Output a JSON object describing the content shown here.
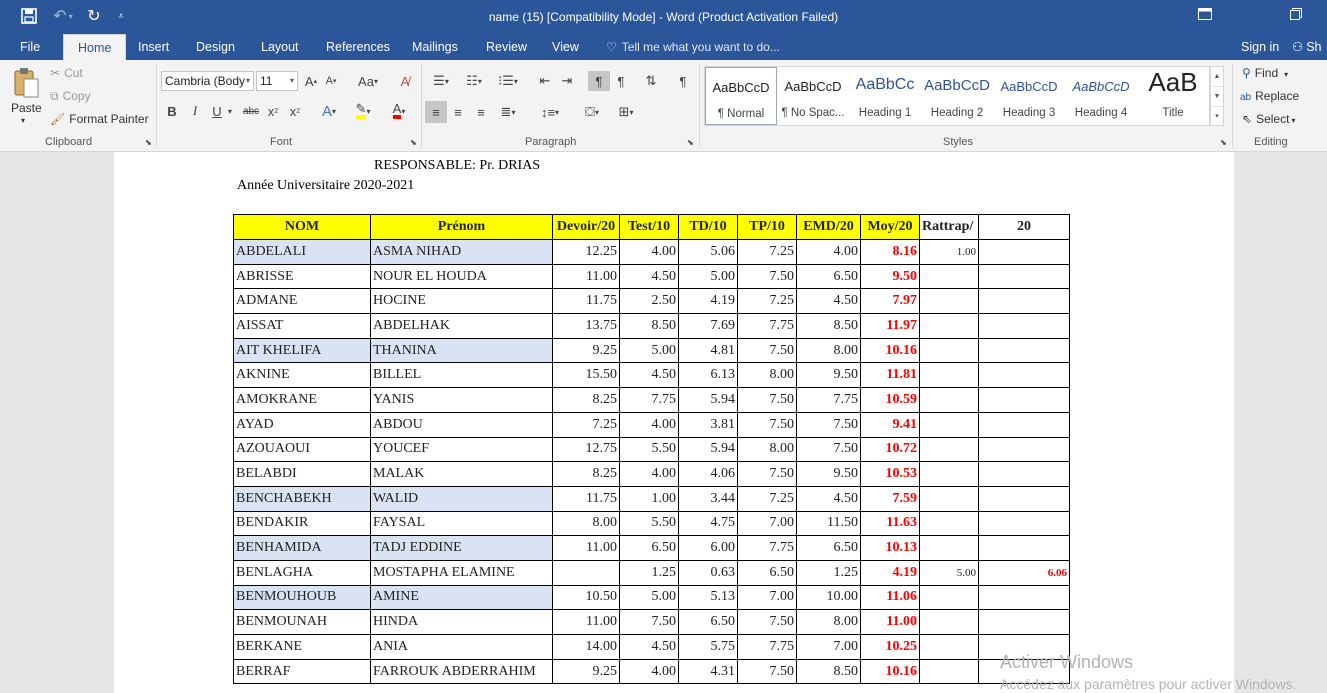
{
  "titlebar": {
    "title": "name (15) [Compatibility Mode] - Word (Product Activation Failed)"
  },
  "tabs": [
    {
      "label": "File"
    },
    {
      "label": "Home"
    },
    {
      "label": "Insert"
    },
    {
      "label": "Design"
    },
    {
      "label": "Layout"
    },
    {
      "label": "References"
    },
    {
      "label": "Mailings"
    },
    {
      "label": "Review"
    },
    {
      "label": "View"
    }
  ],
  "tell_me": "Tell me what you want to do...",
  "sign_in": "Sign in",
  "share": "Sh",
  "clipboard": {
    "paste": "Paste",
    "cut": "Cut",
    "copy": "Copy",
    "format_painter": "Format Painter",
    "label": "Clipboard"
  },
  "font": {
    "family": "Cambria (Body",
    "size": "11",
    "label": "Font"
  },
  "paragraph": {
    "label": "Paragraph"
  },
  "styles": {
    "label": "Styles",
    "items": [
      {
        "preview": "AaBbCcD",
        "name": "¶ Normal"
      },
      {
        "preview": "AaBbCcD",
        "name": "¶ No Spac..."
      },
      {
        "preview": "AaBbCc",
        "name": "Heading 1"
      },
      {
        "preview": "AaBbCcD",
        "name": "Heading 2"
      },
      {
        "preview": "AaBbCcD",
        "name": "Heading 3"
      },
      {
        "preview": "AaBbCcD",
        "name": "Heading 4"
      },
      {
        "preview": "AaB",
        "name": "Title"
      }
    ]
  },
  "editing": {
    "find": "Find",
    "replace": "Replace",
    "select": "Select",
    "label": "Editing"
  },
  "document": {
    "responsable": "RESPONSABLE: Pr. DRIAS",
    "annee": "Année Universitaire 2020-2021",
    "headers": [
      "NOM",
      "Prénom",
      "Devoir/20",
      "Test/10",
      "TD/10",
      "TP/10",
      "EMD/20",
      "Moy/20",
      "Rattrap/",
      "20"
    ],
    "rows": [
      {
        "nom": "ABDELALI",
        "prenom": "ASMA NIHAD",
        "devoir": "12.25",
        "test": "4.00",
        "td": "5.06",
        "tp": "7.25",
        "emd": "4.00",
        "moy": "8.16",
        "rattrap": "1.00",
        "final": ""
      },
      {
        "nom": "ABRISSE",
        "prenom": "NOUR EL HOUDA",
        "devoir": "11.00",
        "test": "4.50",
        "td": "5.00",
        "tp": "7.50",
        "emd": "6.50",
        "moy": "9.50",
        "rattrap": "",
        "final": ""
      },
      {
        "nom": "ADMANE",
        "prenom": "HOCINE",
        "devoir": "11.75",
        "test": "2.50",
        "td": "4.19",
        "tp": "7.25",
        "emd": "4.50",
        "moy": "7.97",
        "rattrap": "",
        "final": ""
      },
      {
        "nom": "AISSAT",
        "prenom": "ABDELHAK",
        "devoir": "13.75",
        "test": "8.50",
        "td": "7.69",
        "tp": "7.75",
        "emd": "8.50",
        "moy": "11.97",
        "rattrap": "",
        "final": ""
      },
      {
        "nom": "AIT KHELIFA",
        "prenom": "THANINA",
        "devoir": "9.25",
        "test": "5.00",
        "td": "4.81",
        "tp": "7.50",
        "emd": "8.00",
        "moy": "10.16",
        "rattrap": "",
        "final": ""
      },
      {
        "nom": "AKNINE",
        "prenom": "BILLEL",
        "devoir": "15.50",
        "test": "4.50",
        "td": "6.13",
        "tp": "8.00",
        "emd": "9.50",
        "moy": "11.81",
        "rattrap": "",
        "final": ""
      },
      {
        "nom": "AMOKRANE",
        "prenom": "YANIS",
        "devoir": "8.25",
        "test": "7.75",
        "td": "5.94",
        "tp": "7.50",
        "emd": "7.75",
        "moy": "10.59",
        "rattrap": "",
        "final": ""
      },
      {
        "nom": "AYAD",
        "prenom": "ABDOU",
        "devoir": "7.25",
        "test": "4.00",
        "td": "3.81",
        "tp": "7.50",
        "emd": "7.50",
        "moy": "9.41",
        "rattrap": "",
        "final": ""
      },
      {
        "nom": "AZOUAOUI",
        "prenom": "YOUCEF",
        "devoir": "12.75",
        "test": "5.50",
        "td": "5.94",
        "tp": "8.00",
        "emd": "7.50",
        "moy": "10.72",
        "rattrap": "",
        "final": ""
      },
      {
        "nom": "BELABDI",
        "prenom": "MALAK",
        "devoir": "8.25",
        "test": "4.00",
        "td": "4.06",
        "tp": "7.50",
        "emd": "9.50",
        "moy": "10.53",
        "rattrap": "",
        "final": ""
      },
      {
        "nom": "BENCHABEKH",
        "prenom": "WALID",
        "devoir": "11.75",
        "test": "1.00",
        "td": "3.44",
        "tp": "7.25",
        "emd": "4.50",
        "moy": "7.59",
        "rattrap": "",
        "final": ""
      },
      {
        "nom": "BENDAKIR",
        "prenom": "FAYSAL",
        "devoir": "8.00",
        "test": "5.50",
        "td": "4.75",
        "tp": "7.00",
        "emd": "11.50",
        "moy": "11.63",
        "rattrap": "",
        "final": ""
      },
      {
        "nom": "BENHAMIDA",
        "prenom": "TADJ EDDINE",
        "devoir": "11.00",
        "test": "6.50",
        "td": "6.00",
        "tp": "7.75",
        "emd": "6.50",
        "moy": "10.13",
        "rattrap": "",
        "final": ""
      },
      {
        "nom": "BENLAGHA",
        "prenom": "MOSTAPHA ELAMINE",
        "devoir": "",
        "test": "1.25",
        "td": "0.63",
        "tp": "6.50",
        "emd": "1.25",
        "moy": "4.19",
        "rattrap": "5.00",
        "final": "6.06"
      },
      {
        "nom": "BENMOUHOUB",
        "prenom": "AMINE",
        "devoir": "10.50",
        "test": "5.00",
        "td": "5.13",
        "tp": "7.00",
        "emd": "10.00",
        "moy": "11.06",
        "rattrap": "",
        "final": ""
      },
      {
        "nom": "BENMOUNAH",
        "prenom": "HINDA",
        "devoir": "11.00",
        "test": "7.50",
        "td": "6.50",
        "tp": "7.50",
        "emd": "8.00",
        "moy": "11.00",
        "rattrap": "",
        "final": ""
      },
      {
        "nom": "BERKANE",
        "prenom": "ANIA",
        "devoir": "14.00",
        "test": "4.50",
        "td": "5.75",
        "tp": "7.75",
        "emd": "7.00",
        "moy": "10.25",
        "rattrap": "",
        "final": ""
      },
      {
        "nom": "BERRAF",
        "prenom": "FARROUK ABDERRAHIM",
        "devoir": "9.25",
        "test": "4.00",
        "td": "4.31",
        "tp": "7.50",
        "emd": "8.50",
        "moy": "10.16",
        "rattrap": "",
        "final": ""
      }
    ]
  },
  "watermark": {
    "line1": "Activer Windows",
    "line2": "Accédez aux paramètres pour activer Windows."
  },
  "colors": {
    "word_blue": "#2b579a",
    "ribbon_bg": "#f3f3f3",
    "header_yellow": "#ffff00",
    "moy_red": "#ff0000",
    "highlight_blue": "#dae3f3"
  }
}
